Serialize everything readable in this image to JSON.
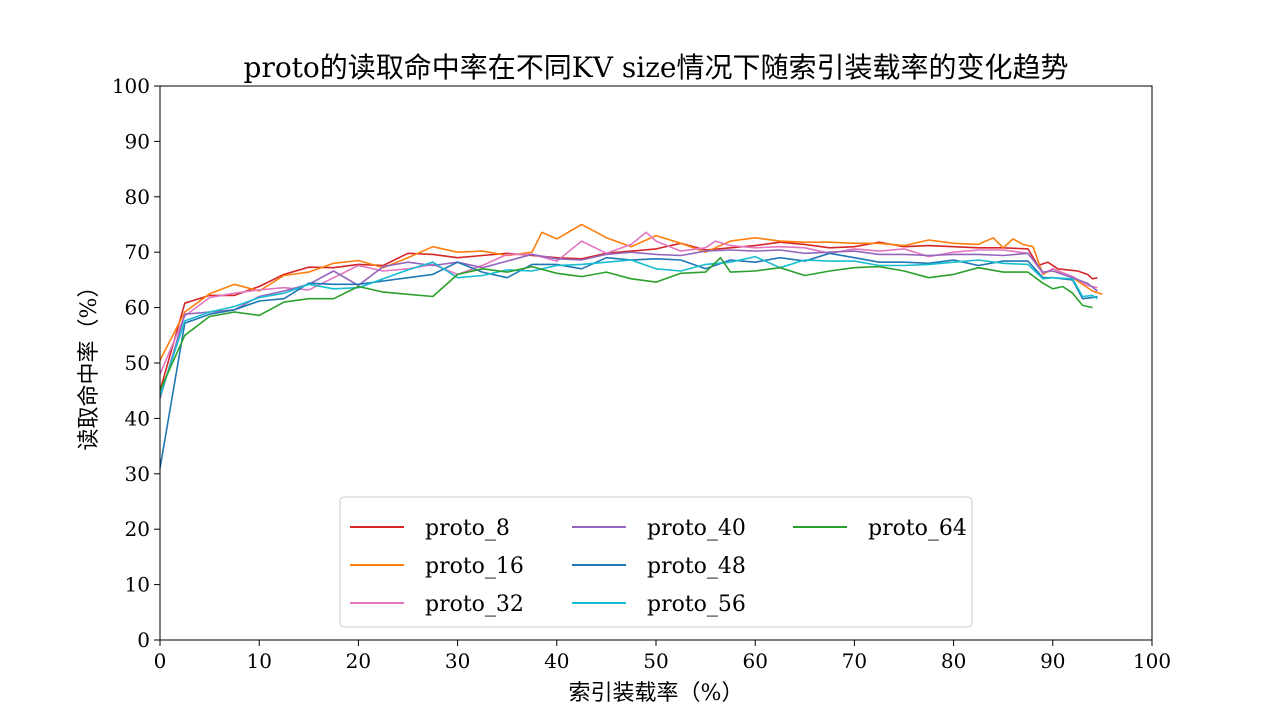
{
  "chart_data": {
    "type": "line",
    "title": "proto的读取命中率在不同KV size情况下随索引装载率的变化趋势",
    "xlabel": "索引装载率（%）",
    "ylabel": "读取命中率（%）",
    "xlim": [
      0,
      100
    ],
    "ylim": [
      0,
      100
    ],
    "xticks": [
      "0",
      "10",
      "20",
      "30",
      "40",
      "50",
      "60",
      "70",
      "80",
      "90",
      "100"
    ],
    "yticks": [
      "0",
      "10",
      "20",
      "30",
      "40",
      "50",
      "60",
      "70",
      "80",
      "90",
      "100"
    ],
    "grid": false,
    "legend_position": "lower-center",
    "legend_columns": 3,
    "series": [
      {
        "name": "proto_8",
        "color": "#d62728",
        "x": [
          0,
          2.5,
          5,
          7.5,
          10,
          12.5,
          15,
          17.5,
          20,
          22.5,
          25,
          27.5,
          30,
          32.5,
          35,
          37.5,
          40,
          42.5,
          45,
          47.5,
          50,
          52.5,
          55,
          57.5,
          60,
          62.5,
          65,
          67.5,
          70,
          72.5,
          75,
          77.5,
          80,
          82.5,
          85,
          87.5,
          88.5,
          89.5,
          90.5,
          91.5,
          92.5,
          93.5,
          94,
          94.5
        ],
        "y": [
          45,
          60.8,
          62.2,
          62.2,
          63.8,
          66.0,
          67.3,
          67.2,
          67.8,
          67.6,
          69.8,
          69.6,
          69.0,
          69.4,
          69.8,
          69.4,
          69.0,
          68.8,
          69.8,
          70.2,
          70.6,
          71.6,
          70.4,
          70.8,
          71.2,
          71.8,
          71.4,
          70.8,
          71.0,
          71.8,
          71.0,
          71.2,
          71.0,
          70.8,
          70.8,
          70.6,
          67.6,
          68.2,
          67.0,
          66.8,
          66.6,
          66.0,
          65.2,
          65.4
        ]
      },
      {
        "name": "proto_16",
        "color": "#ff7f0e",
        "x": [
          0,
          2.5,
          5,
          7.5,
          10,
          12.5,
          15,
          17.5,
          20,
          22.5,
          25,
          27.5,
          30,
          32.5,
          35,
          37.5,
          38.5,
          40,
          42.5,
          44,
          45,
          47.5,
          50,
          52.5,
          55,
          57.5,
          60,
          62.5,
          65,
          67.5,
          70,
          72.5,
          75,
          77.5,
          80,
          82.5,
          84,
          85,
          86,
          87,
          88,
          89,
          90,
          92,
          94,
          95
        ],
        "y": [
          50.5,
          59.2,
          62.5,
          64.2,
          63.0,
          65.8,
          66.4,
          68.0,
          68.5,
          67.2,
          69.0,
          71.0,
          70.0,
          70.2,
          69.4,
          70.0,
          73.6,
          72.4,
          75.0,
          73.6,
          72.6,
          71.0,
          73.0,
          71.6,
          70.0,
          72.0,
          72.6,
          72.0,
          71.8,
          71.8,
          71.6,
          71.6,
          71.2,
          72.2,
          71.6,
          71.4,
          72.6,
          70.8,
          72.4,
          71.4,
          71.0,
          66.0,
          67.0,
          65.4,
          63.0,
          62.4
        ]
      },
      {
        "name": "proto_32",
        "color": "#e377c2",
        "x": [
          0,
          2.5,
          5,
          7.5,
          10,
          12.5,
          15,
          17.5,
          20,
          22.5,
          25,
          27.5,
          30,
          32.5,
          35,
          37.5,
          40,
          42.5,
          45,
          47.5,
          49,
          50,
          52.5,
          55,
          56,
          57.5,
          60,
          62.5,
          65,
          67.5,
          70,
          72.5,
          75,
          77.5,
          80,
          82.5,
          85,
          87.5,
          89,
          90,
          92,
          93.5,
          94.5
        ],
        "y": [
          48,
          58.5,
          61.8,
          62.6,
          63.2,
          63.6,
          63.2,
          65.4,
          67.6,
          66.6,
          67.0,
          67.8,
          66.0,
          67.6,
          69.6,
          69.6,
          68.4,
          72.0,
          69.8,
          71.4,
          73.6,
          72.0,
          70.2,
          70.8,
          72.0,
          71.2,
          70.8,
          71.0,
          70.8,
          69.8,
          70.6,
          70.2,
          70.6,
          69.2,
          70.0,
          70.4,
          70.4,
          69.8,
          66.2,
          67.0,
          65.6,
          64.0,
          63.6
        ]
      },
      {
        "name": "proto_40",
        "color": "#9467bd",
        "x": [
          0,
          2.5,
          5,
          7.5,
          10,
          12.5,
          15,
          17.5,
          20,
          22.5,
          25,
          27.5,
          30,
          32.5,
          35,
          37.5,
          40,
          42.5,
          45,
          47.5,
          50,
          52.5,
          55,
          57.5,
          60,
          62.5,
          65,
          67.5,
          70,
          72.5,
          75,
          77.5,
          80,
          82.5,
          85,
          87.5,
          89,
          90,
          92,
          93.5,
          94.5
        ],
        "y": [
          43.6,
          58.8,
          59.2,
          59.6,
          62.0,
          63.0,
          64.2,
          66.6,
          64.0,
          67.4,
          68.2,
          67.6,
          68.2,
          67.2,
          68.4,
          69.6,
          68.8,
          68.6,
          69.6,
          70.0,
          69.6,
          69.4,
          70.2,
          70.4,
          70.2,
          70.4,
          69.8,
          70.0,
          70.2,
          69.6,
          69.6,
          69.4,
          69.6,
          69.6,
          69.4,
          69.8,
          66.4,
          66.6,
          65.4,
          64.4,
          63.0
        ]
      },
      {
        "name": "proto_48",
        "color": "#1f77b4",
        "x": [
          0,
          2.5,
          5,
          7.5,
          10,
          12.5,
          15,
          17.5,
          20,
          22.5,
          25,
          27.5,
          30,
          32.5,
          35,
          37.5,
          40,
          42.5,
          45,
          47.5,
          50,
          52.5,
          55,
          57.5,
          60,
          62.5,
          65,
          67.5,
          70,
          72.5,
          75,
          77.5,
          80,
          82.5,
          85,
          87.5,
          89,
          90,
          92,
          93,
          94,
          94.5
        ],
        "y": [
          31,
          57.2,
          58.8,
          59.6,
          61.2,
          61.6,
          64.4,
          64.2,
          64.2,
          64.8,
          65.4,
          66.0,
          68.2,
          66.4,
          65.4,
          67.8,
          67.8,
          67.0,
          69.0,
          68.6,
          68.8,
          68.6,
          67.0,
          68.6,
          68.2,
          69.0,
          68.4,
          69.8,
          69.0,
          68.2,
          68.2,
          68.0,
          68.6,
          67.6,
          68.4,
          68.4,
          65.4,
          65.4,
          65.0,
          61.6,
          61.8,
          62.0
        ]
      },
      {
        "name": "proto_56",
        "color": "#17becf",
        "x": [
          0,
          2.5,
          5,
          7.5,
          10,
          12.5,
          15,
          17.5,
          20,
          22.5,
          25,
          27.5,
          30,
          32.5,
          35,
          37.5,
          40,
          42.5,
          45,
          47.5,
          50,
          52.5,
          55,
          57.5,
          60,
          62.5,
          65,
          67.5,
          70,
          72.5,
          75,
          77.5,
          80,
          82.5,
          85,
          87.5,
          89,
          90,
          92,
          93,
          94,
          94.5
        ],
        "y": [
          44.0,
          57.6,
          59.2,
          60.2,
          61.8,
          62.6,
          64.2,
          63.4,
          63.6,
          65.2,
          66.8,
          68.2,
          65.4,
          65.8,
          66.8,
          66.6,
          67.6,
          67.8,
          68.2,
          68.6,
          67.0,
          66.6,
          67.8,
          68.2,
          69.2,
          67.2,
          68.6,
          68.4,
          68.4,
          67.6,
          67.6,
          67.8,
          68.2,
          68.6,
          68.0,
          67.8,
          65.2,
          65.4,
          65.2,
          62.0,
          62.2,
          61.6
        ]
      },
      {
        "name": "proto_64",
        "color": "#2ca02c",
        "x": [
          0,
          2.5,
          5,
          7.5,
          10,
          12.5,
          15,
          17.5,
          20,
          22.5,
          25,
          27.5,
          30,
          32.5,
          35,
          37.5,
          40,
          42.5,
          45,
          47.5,
          50,
          52.5,
          55,
          56.5,
          57.5,
          60,
          62.5,
          65,
          67.5,
          70,
          72.5,
          75,
          77.5,
          80,
          82.5,
          85,
          87.5,
          89,
          90,
          91,
          92,
          93,
          94
        ],
        "y": [
          45,
          55.0,
          58.4,
          59.2,
          58.6,
          61.0,
          61.6,
          61.6,
          63.8,
          62.8,
          62.4,
          62.0,
          66.0,
          67.0,
          66.4,
          67.4,
          66.2,
          65.6,
          66.4,
          65.2,
          64.6,
          66.2,
          66.4,
          69.0,
          66.4,
          66.6,
          67.2,
          65.8,
          66.6,
          67.2,
          67.4,
          66.6,
          65.4,
          66.0,
          67.2,
          66.4,
          66.4,
          64.4,
          63.4,
          63.8,
          62.6,
          60.4,
          60.0
        ]
      }
    ]
  }
}
